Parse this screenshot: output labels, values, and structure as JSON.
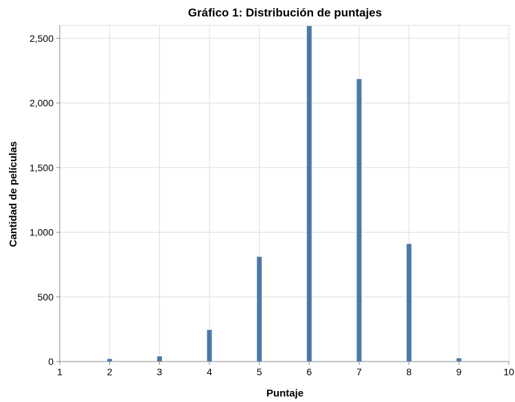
{
  "chart_data": {
    "type": "bar",
    "title": "Gráfico 1: Distribución de puntajes",
    "xlabel": "Puntaje",
    "ylabel": "Cantidad de películas",
    "x": [
      2,
      3,
      4,
      5,
      6,
      7,
      8,
      9
    ],
    "values": [
      20,
      40,
      245,
      810,
      2595,
      2185,
      910,
      25
    ],
    "xlim": [
      1,
      10
    ],
    "ylim": [
      0,
      2600
    ],
    "xticks": [
      "1",
      "2",
      "3",
      "4",
      "5",
      "6",
      "7",
      "8",
      "9",
      "10"
    ],
    "yticks": [
      "0",
      "500",
      "1,000",
      "1,500",
      "2,000",
      "2,500"
    ],
    "ytick_values": [
      0,
      500,
      1000,
      1500,
      2000,
      2500
    ],
    "grid": true,
    "bar_color": "#4c78a8"
  }
}
